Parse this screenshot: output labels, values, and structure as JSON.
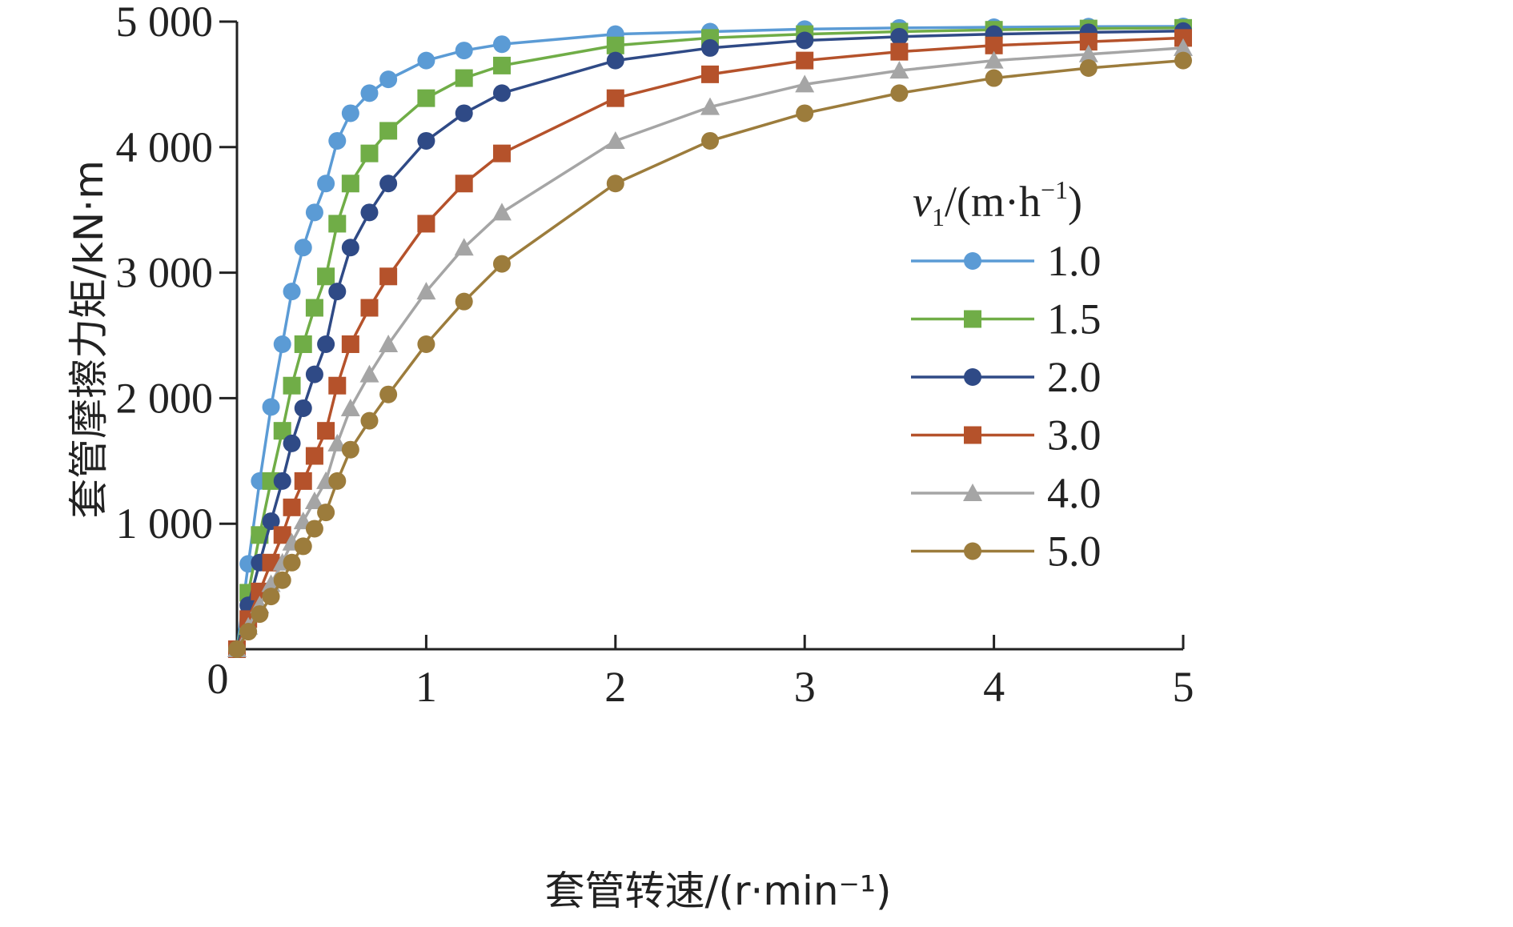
{
  "chart_data": {
    "type": "line",
    "title": "",
    "xlabel": "套管转速/(r·min⁻¹)",
    "ylabel": "套管摩擦力矩/kN·m",
    "xlim": [
      0,
      5
    ],
    "ylim": [
      0,
      5000
    ],
    "x_ticks": [
      1,
      2,
      3,
      4,
      5
    ],
    "y_ticks": [
      1000,
      2000,
      3000,
      4000,
      5000
    ],
    "x_tick_labels": [
      "1",
      "2",
      "3",
      "4",
      "5"
    ],
    "y_tick_labels": [
      "1 000",
      "2 000",
      "3 000",
      "4 000",
      "5 000"
    ],
    "origin_label": "0",
    "grid": false,
    "legend": {
      "position": "right",
      "title_var": "v",
      "title_sub": "1",
      "title_units": "/(m·h",
      "title_sup": "−1",
      "title_close": ")"
    },
    "series": [
      {
        "name": "1.0",
        "color": "#5b9bd5",
        "marker": "circle",
        "x": [
          0,
          0.06,
          0.12,
          0.18,
          0.24,
          0.29,
          0.35,
          0.41,
          0.47,
          0.53,
          0.6,
          0.7,
          0.8,
          1.0,
          1.2,
          1.4,
          2.0,
          2.5,
          3.0,
          3.5,
          4.0,
          4.5,
          5.0
        ],
        "y": [
          0,
          680,
          1340,
          1930,
          2430,
          2850,
          3200,
          3480,
          3710,
          4050,
          4270,
          4430,
          4540,
          4690,
          4770,
          4820,
          4900,
          4920,
          4940,
          4950,
          4955,
          4960,
          4962
        ]
      },
      {
        "name": "1.5",
        "color": "#70ad47",
        "marker": "square",
        "x": [
          0,
          0.06,
          0.12,
          0.18,
          0.24,
          0.29,
          0.35,
          0.41,
          0.47,
          0.53,
          0.6,
          0.7,
          0.8,
          1.0,
          1.2,
          1.4,
          2.0,
          2.5,
          3.0,
          3.5,
          4.0,
          4.5,
          5.0
        ],
        "y": [
          0,
          450,
          910,
          1340,
          1740,
          2100,
          2430,
          2720,
          2970,
          3390,
          3710,
          3950,
          4130,
          4390,
          4550,
          4650,
          4810,
          4870,
          4900,
          4920,
          4935,
          4945,
          4950
        ]
      },
      {
        "name": "2.0",
        "color": "#2f4a86",
        "marker": "circle",
        "x": [
          0,
          0.06,
          0.12,
          0.18,
          0.24,
          0.29,
          0.35,
          0.41,
          0.47,
          0.53,
          0.6,
          0.7,
          0.8,
          1.0,
          1.2,
          1.4,
          2.0,
          2.5,
          3.0,
          3.5,
          4.0,
          4.5,
          5.0
        ],
        "y": [
          0,
          350,
          690,
          1020,
          1340,
          1640,
          1920,
          2190,
          2430,
          2850,
          3200,
          3480,
          3710,
          4050,
          4270,
          4430,
          4690,
          4790,
          4850,
          4880,
          4900,
          4915,
          4925
        ]
      },
      {
        "name": "3.0",
        "color": "#b5522b",
        "marker": "square",
        "x": [
          0,
          0.06,
          0.12,
          0.18,
          0.24,
          0.29,
          0.35,
          0.41,
          0.47,
          0.53,
          0.6,
          0.7,
          0.8,
          1.0,
          1.2,
          1.4,
          2.0,
          2.5,
          3.0,
          3.5,
          4.0,
          4.5,
          5.0
        ],
        "y": [
          0,
          240,
          460,
          690,
          910,
          1130,
          1340,
          1540,
          1740,
          2100,
          2430,
          2720,
          2970,
          3390,
          3710,
          3950,
          4390,
          4580,
          4690,
          4760,
          4810,
          4840,
          4870
        ]
      },
      {
        "name": "4.0",
        "color": "#a5a5a5",
        "marker": "triangle",
        "x": [
          0,
          0.06,
          0.12,
          0.18,
          0.24,
          0.29,
          0.35,
          0.41,
          0.47,
          0.53,
          0.6,
          0.7,
          0.8,
          1.0,
          1.2,
          1.4,
          2.0,
          2.5,
          3.0,
          3.5,
          4.0,
          4.5,
          5.0
        ],
        "y": [
          0,
          180,
          350,
          520,
          690,
          850,
          1020,
          1180,
          1340,
          1640,
          1920,
          2190,
          2430,
          2850,
          3200,
          3480,
          4050,
          4320,
          4500,
          4610,
          4690,
          4740,
          4790
        ]
      },
      {
        "name": "5.0",
        "color": "#9c7c3c",
        "marker": "circle",
        "x": [
          0,
          0.06,
          0.12,
          0.18,
          0.24,
          0.29,
          0.35,
          0.41,
          0.47,
          0.53,
          0.6,
          0.7,
          0.8,
          1.0,
          1.2,
          1.4,
          2.0,
          2.5,
          3.0,
          3.5,
          4.0,
          4.5,
          5.0
        ],
        "y": [
          0,
          140,
          280,
          420,
          550,
          690,
          820,
          960,
          1090,
          1340,
          1590,
          1820,
          2030,
          2430,
          2770,
          3070,
          3710,
          4050,
          4270,
          4430,
          4550,
          4630,
          4690
        ]
      }
    ]
  }
}
